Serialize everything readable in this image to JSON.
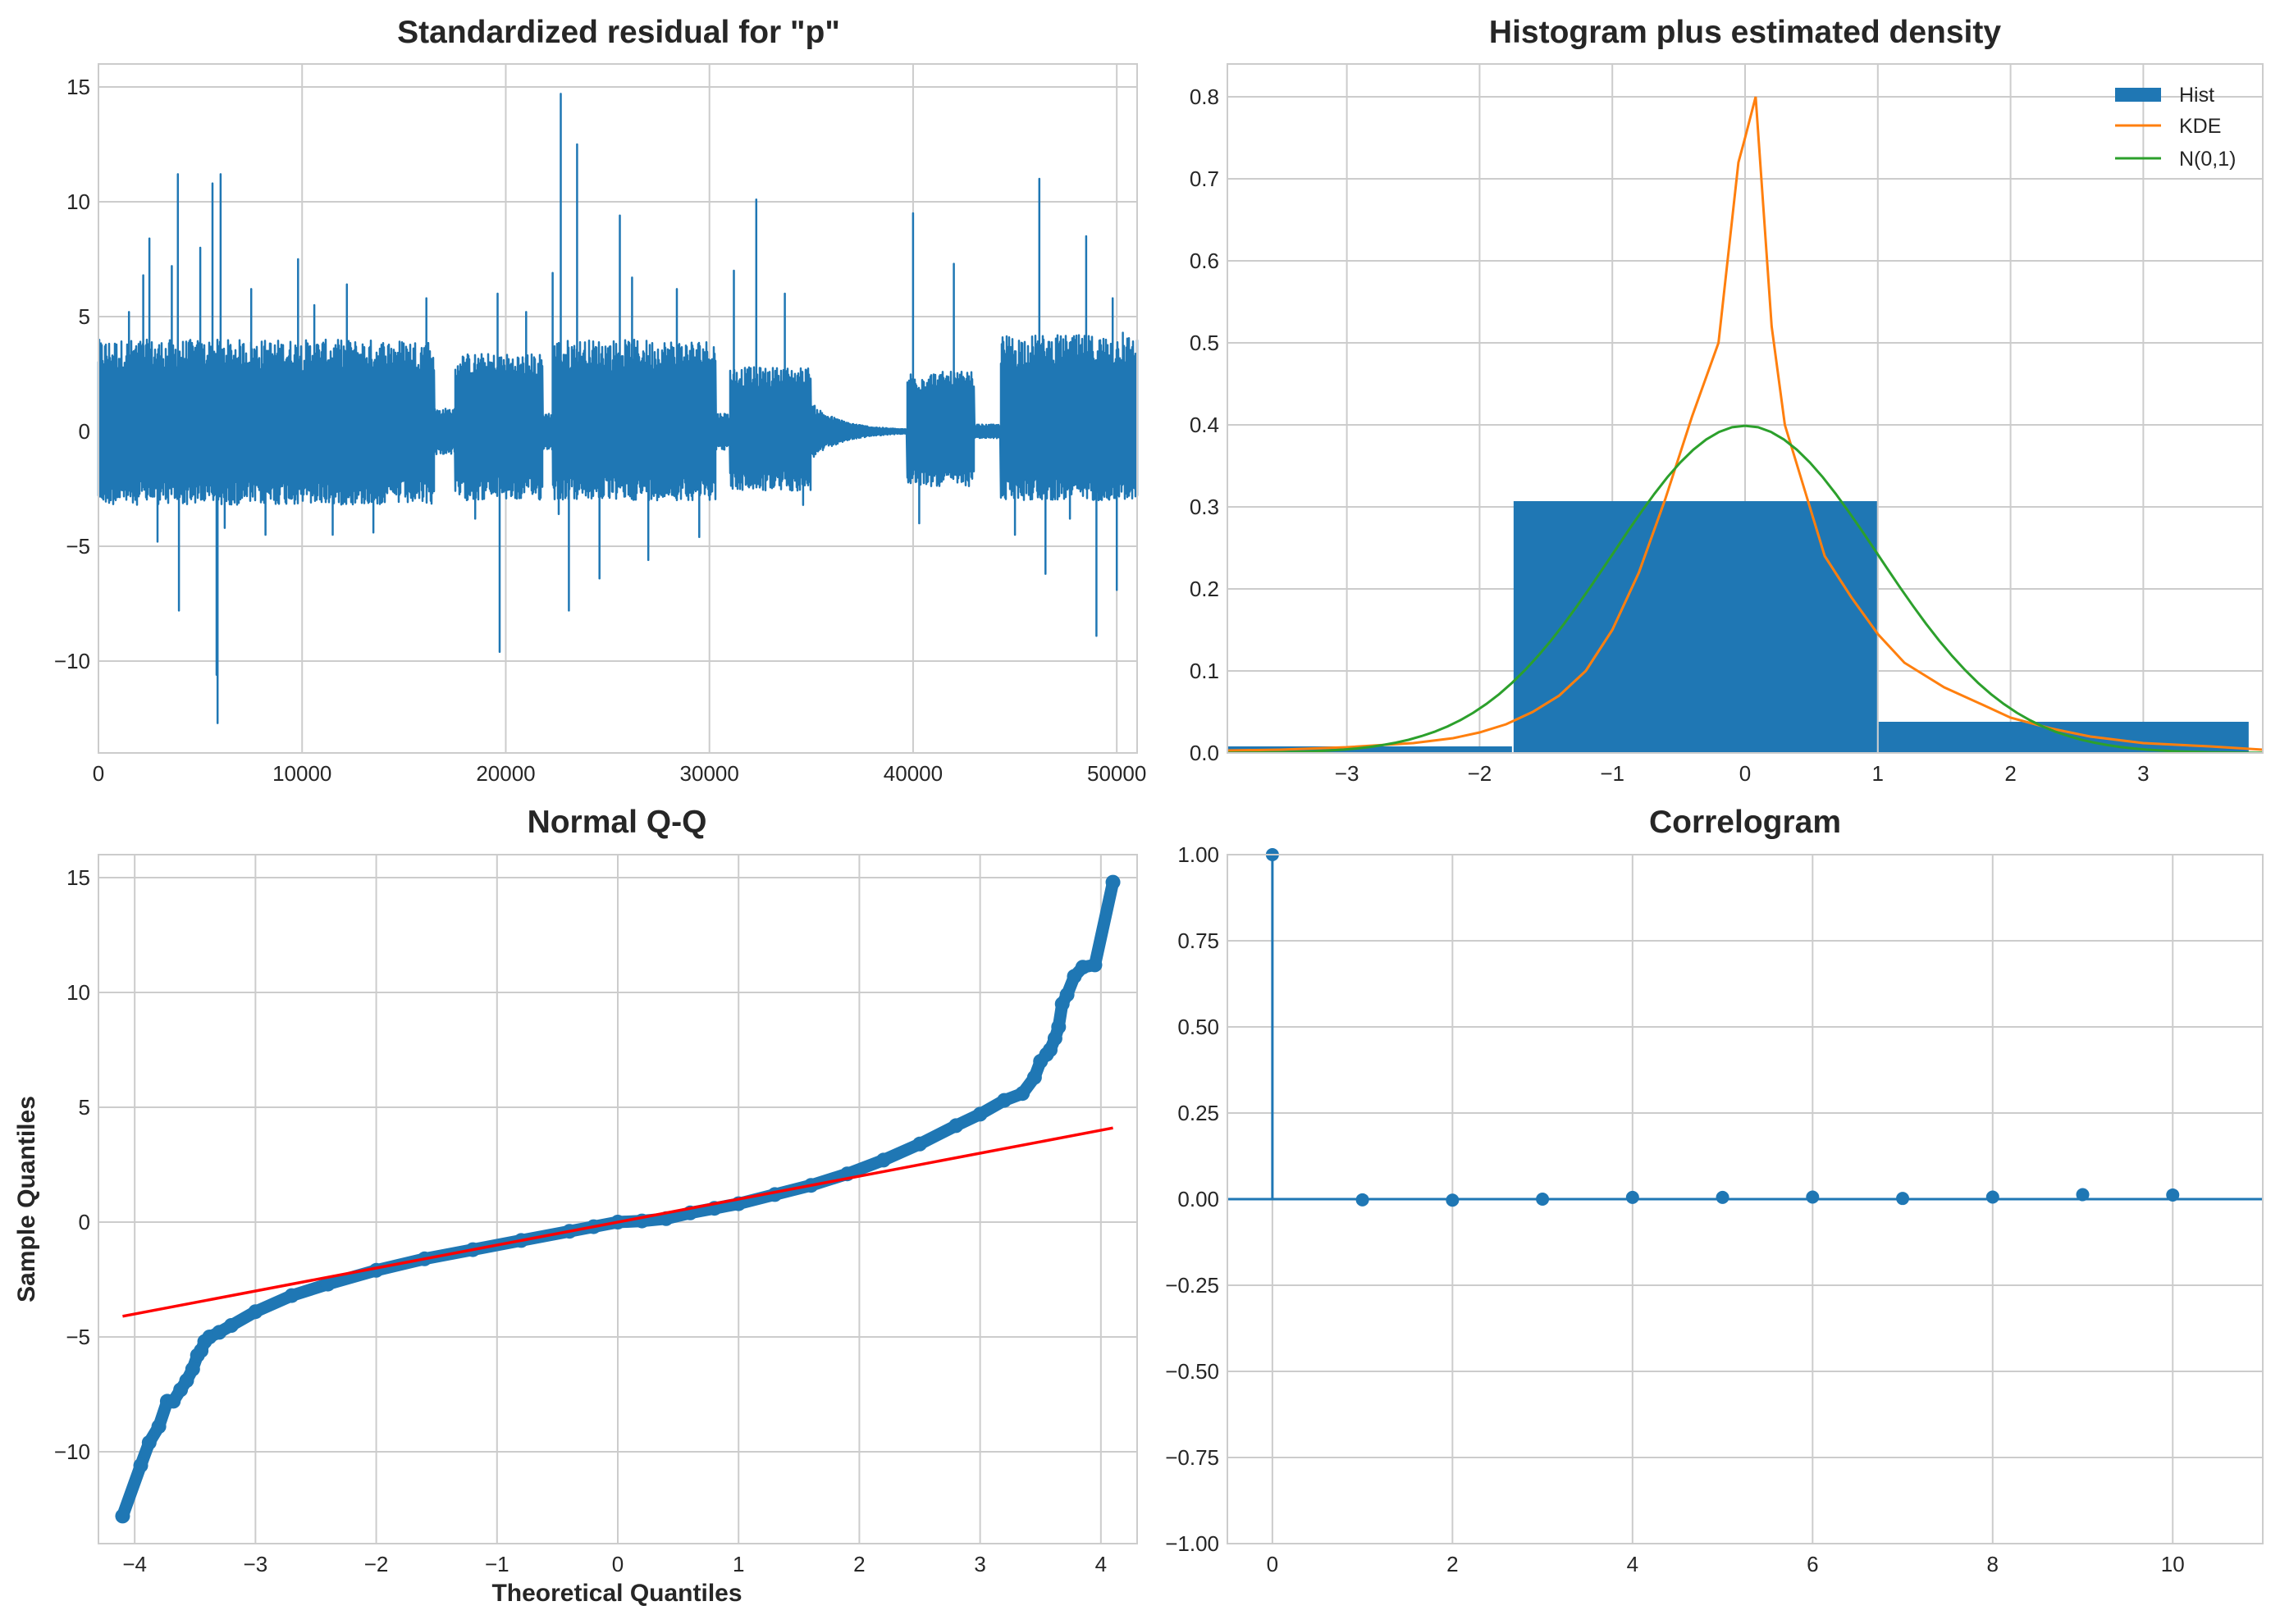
{
  "colors": {
    "blue": "#1f77b4",
    "orange": "#ff7f0e",
    "green": "#2ca02c",
    "red": "#ff0000",
    "grid": "#cccccc",
    "text": "#262626"
  },
  "chart_data": [
    {
      "type": "line",
      "title": "Standardized residual for \"p\"",
      "xlabel": "",
      "ylabel": "",
      "xlim": [
        0,
        51000
      ],
      "ylim": [
        -14,
        16
      ],
      "xticks": [
        0,
        10000,
        20000,
        30000,
        40000,
        50000
      ],
      "yticks": [
        -10,
        -5,
        0,
        5,
        10,
        15
      ],
      "xtick_labels": [
        "0",
        "10000",
        "20000",
        "30000",
        "40000",
        "50000"
      ],
      "ytick_labels": [
        "−10",
        "−5",
        "0",
        "5",
        "10",
        "15"
      ],
      "grid": true,
      "series": [
        {
          "segments": [
            {
              "x_start": 0,
              "x_end": 16500,
              "low": -3.2,
              "high": 4.0,
              "amp": 1.0
            },
            {
              "x_start": 16500,
              "x_end": 17500,
              "low": -1.0,
              "high": 1.0,
              "amp": 0.6
            },
            {
              "x_start": 17500,
              "x_end": 21800,
              "low": -3.0,
              "high": 3.4,
              "amp": 1.0
            },
            {
              "x_start": 21800,
              "x_end": 22300,
              "low": -0.8,
              "high": 0.8,
              "amp": 0.6
            },
            {
              "x_start": 22300,
              "x_end": 30300,
              "low": -3.0,
              "high": 4.0,
              "amp": 1.0
            },
            {
              "x_start": 30300,
              "x_end": 31000,
              "low": -0.8,
              "high": 0.8,
              "amp": 0.6
            },
            {
              "x_start": 31000,
              "x_end": 35000,
              "low": -2.6,
              "high": 2.8,
              "amp": 1.0
            },
            {
              "x_start": 35000,
              "x_end": 39700,
              "low": -1.2,
              "high": 1.2,
              "amp": 0.2
            },
            {
              "x_start": 39700,
              "x_end": 43000,
              "low": -2.4,
              "high": 2.6,
              "amp": 1.0
            },
            {
              "x_start": 43000,
              "x_end": 44300,
              "low": -0.3,
              "high": 0.3,
              "amp": 0.5
            },
            {
              "x_start": 44300,
              "x_end": 51000,
              "low": -3.0,
              "high": 4.2,
              "amp": 1.0
            }
          ],
          "spikes": [
            [
              1500,
              5.2
            ],
            [
              2200,
              6.8
            ],
            [
              2500,
              8.4
            ],
            [
              2900,
              -4.8
            ],
            [
              3600,
              7.2
            ],
            [
              3900,
              11.2
            ],
            [
              3950,
              -7.8
            ],
            [
              5000,
              8.0
            ],
            [
              5600,
              10.8
            ],
            [
              5800,
              -10.6
            ],
            [
              5850,
              -12.7
            ],
            [
              6000,
              11.2
            ],
            [
              6200,
              -4.2
            ],
            [
              7500,
              6.2
            ],
            [
              8200,
              -4.5
            ],
            [
              9800,
              7.5
            ],
            [
              10600,
              5.5
            ],
            [
              11500,
              -4.5
            ],
            [
              12200,
              6.4
            ],
            [
              13500,
              -4.4
            ],
            [
              16100,
              5.8
            ],
            [
              18500,
              -3.8
            ],
            [
              19600,
              6.0
            ],
            [
              19700,
              -9.6
            ],
            [
              21000,
              5.2
            ],
            [
              22300,
              6.9
            ],
            [
              22600,
              -3.6
            ],
            [
              22700,
              14.7
            ],
            [
              23100,
              -7.8
            ],
            [
              23500,
              12.5
            ],
            [
              24600,
              -6.4
            ],
            [
              25600,
              9.4
            ],
            [
              26200,
              6.7
            ],
            [
              27000,
              -5.6
            ],
            [
              28400,
              6.2
            ],
            [
              29500,
              -4.6
            ],
            [
              31200,
              7.0
            ],
            [
              32300,
              10.1
            ],
            [
              33700,
              6.0
            ],
            [
              34600,
              -3.2
            ],
            [
              40000,
              9.5
            ],
            [
              40300,
              -4.0
            ],
            [
              42000,
              7.3
            ],
            [
              45000,
              -4.5
            ],
            [
              46200,
              11.0
            ],
            [
              46500,
              -6.2
            ],
            [
              47700,
              -3.8
            ],
            [
              48500,
              8.5
            ],
            [
              49000,
              -8.9
            ],
            [
              49800,
              5.8
            ],
            [
              50000,
              -6.9
            ],
            [
              50300,
              4.3
            ]
          ]
        }
      ]
    },
    {
      "type": "bar",
      "title": "Histogram plus estimated density",
      "xlim": [
        -3.9,
        3.9
      ],
      "ylim": [
        0,
        0.84
      ],
      "xticks": [
        -3,
        -2,
        -1,
        0,
        1,
        2,
        3
      ],
      "yticks": [
        0.0,
        0.1,
        0.2,
        0.3,
        0.4,
        0.5,
        0.6,
        0.7,
        0.8
      ],
      "xtick_labels": [
        "−3",
        "−2",
        "−1",
        "0",
        "1",
        "2",
        "3"
      ],
      "ytick_labels": [
        "0.0",
        "0.1",
        "0.2",
        "0.3",
        "0.4",
        "0.5",
        "0.6",
        "0.7",
        "0.8"
      ],
      "grid": true,
      "legend_position": "top-right",
      "legend": [
        "Hist",
        "KDE",
        "N(0,1)"
      ],
      "hist_bins": [
        {
          "x0": -4.3,
          "x1": -1.75,
          "density": 0.008
        },
        {
          "x0": -1.75,
          "x1": 1.0,
          "density": 0.307
        },
        {
          "x0": 1.0,
          "x1": 3.8,
          "density": 0.038
        }
      ],
      "series": [
        {
          "name": "KDE",
          "x": [
            -3.9,
            -3.5,
            -3.0,
            -2.5,
            -2.2,
            -2.0,
            -1.8,
            -1.6,
            -1.4,
            -1.2,
            -1.0,
            -0.8,
            -0.6,
            -0.4,
            -0.2,
            -0.05,
            0.0,
            0.08,
            0.2,
            0.3,
            0.45,
            0.6,
            0.8,
            1.0,
            1.2,
            1.5,
            1.8,
            2.0,
            2.3,
            2.6,
            3.0,
            3.5,
            3.9
          ],
          "y": [
            0.003,
            0.004,
            0.007,
            0.012,
            0.018,
            0.025,
            0.035,
            0.05,
            0.07,
            0.1,
            0.15,
            0.22,
            0.31,
            0.41,
            0.5,
            0.72,
            0.75,
            0.8,
            0.52,
            0.4,
            0.32,
            0.24,
            0.19,
            0.145,
            0.11,
            0.08,
            0.058,
            0.043,
            0.03,
            0.02,
            0.012,
            0.008,
            0.004
          ]
        },
        {
          "name": "N(0,1)",
          "mean": 0,
          "std": 1
        }
      ]
    },
    {
      "type": "scatter",
      "title": "Normal Q-Q",
      "xlabel": "Theoretical Quantiles",
      "ylabel": "Sample Quantiles",
      "xlim": [
        -4.3,
        4.3
      ],
      "ylim": [
        -14,
        16
      ],
      "xticks": [
        -4,
        -3,
        -2,
        -1,
        0,
        1,
        2,
        3,
        4
      ],
      "yticks": [
        -10,
        -5,
        0,
        5,
        10,
        15
      ],
      "xtick_labels": [
        "−4",
        "−3",
        "−2",
        "−1",
        "0",
        "1",
        "2",
        "3",
        "4"
      ],
      "ytick_labels": [
        "−10",
        "−5",
        "0",
        "5",
        "10",
        "15"
      ],
      "grid": true,
      "series": [
        {
          "x": [
            -4.1,
            -3.95,
            -3.88,
            -3.8,
            -3.73,
            -3.68,
            -3.62,
            -3.57,
            -3.52,
            -3.48,
            -3.45,
            -3.42,
            -3.38,
            -3.3,
            -3.2,
            -3.0,
            -2.7,
            -2.4,
            -2.0,
            -1.6,
            -1.2,
            -0.8,
            -0.4,
            -0.2,
            0.0,
            0.2,
            0.4,
            0.6,
            0.8,
            1.0,
            1.3,
            1.6,
            1.9,
            2.2,
            2.5,
            2.8,
            3.0,
            3.2,
            3.35,
            3.45,
            3.5,
            3.55,
            3.58,
            3.62,
            3.65,
            3.68,
            3.72,
            3.78,
            3.85,
            3.95,
            4.1
          ],
          "y": [
            -12.8,
            -10.6,
            -9.6,
            -8.9,
            -7.8,
            -7.8,
            -7.3,
            -6.9,
            -6.4,
            -5.8,
            -5.6,
            -5.2,
            -5.0,
            -4.8,
            -4.5,
            -3.9,
            -3.2,
            -2.7,
            -2.1,
            -1.6,
            -1.2,
            -0.8,
            -0.4,
            -0.2,
            0.0,
            0.05,
            0.15,
            0.4,
            0.6,
            0.8,
            1.2,
            1.6,
            2.1,
            2.7,
            3.4,
            4.2,
            4.7,
            5.3,
            5.6,
            6.3,
            7.0,
            7.3,
            7.5,
            8.0,
            8.5,
            9.5,
            9.9,
            10.7,
            11.1,
            11.2,
            14.8
          ]
        },
        {
          "name": "reference",
          "x": [
            -4.1,
            4.1
          ],
          "y": [
            -4.1,
            4.1
          ]
        }
      ]
    },
    {
      "type": "line",
      "title": "Correlogram",
      "xlim": [
        -0.5,
        11.0
      ],
      "ylim": [
        -1.0,
        1.0
      ],
      "xticks": [
        0,
        2,
        4,
        6,
        8,
        10
      ],
      "yticks": [
        -1.0,
        -0.75,
        -0.5,
        -0.25,
        0.0,
        0.25,
        0.5,
        0.75,
        1.0
      ],
      "xtick_labels": [
        "0",
        "2",
        "4",
        "6",
        "8",
        "10"
      ],
      "ytick_labels": [
        "−1.00",
        "−0.75",
        "−0.50",
        "−0.25",
        "0.00",
        "0.25",
        "0.50",
        "0.75",
        "1.00"
      ],
      "grid": true,
      "series": [
        {
          "lags": [
            0,
            1,
            2,
            3,
            4,
            5,
            6,
            7,
            8,
            9,
            10
          ],
          "acf": [
            1.0,
            -0.002,
            -0.003,
            0.0,
            0.005,
            0.005,
            0.006,
            0.002,
            0.006,
            0.013,
            0.012
          ]
        }
      ]
    }
  ]
}
